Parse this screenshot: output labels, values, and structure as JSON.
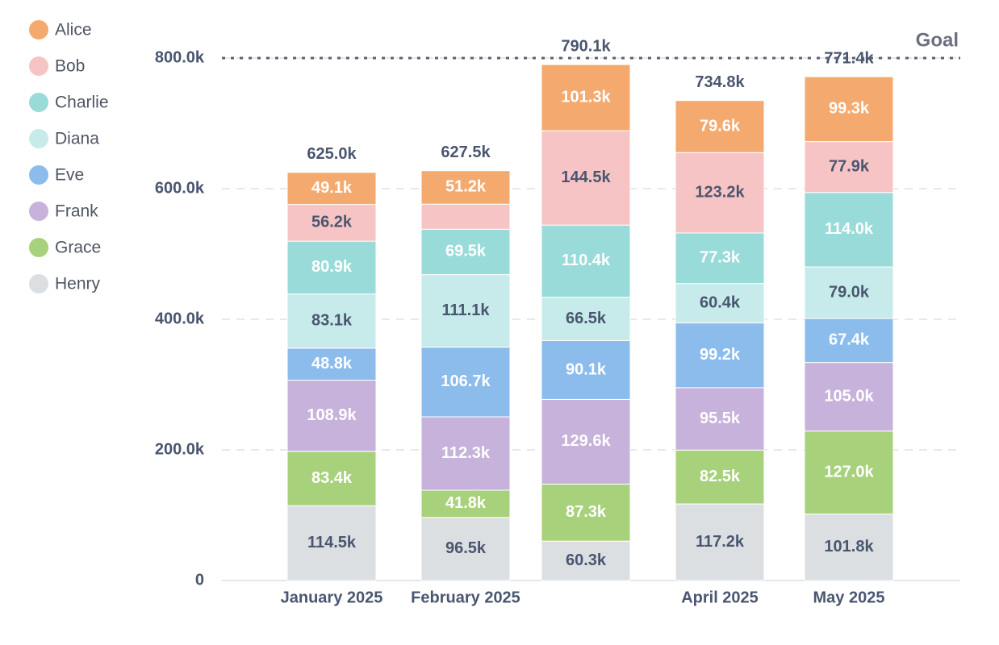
{
  "chart_data": {
    "type": "stacked-bar",
    "categories": [
      "January 2025",
      "February 2025",
      null,
      "April 2025",
      "May 2025"
    ],
    "series": [
      {
        "name": "Henry",
        "color": "#dcdfe2",
        "values": [
          114500,
          96500,
          60300,
          117200,
          101800
        ],
        "value_labels": [
          "114.5k",
          "96.5k",
          "60.3k",
          "117.2k",
          "101.8k"
        ]
      },
      {
        "name": "Grace",
        "color": "#a8d17c",
        "values": [
          83400,
          41800,
          87300,
          82500,
          127000
        ],
        "value_labels": [
          "83.4k",
          "41.8k",
          "87.3k",
          "82.5k",
          "127.0k"
        ]
      },
      {
        "name": "Frank",
        "color": "#c6b2db",
        "values": [
          108900,
          112300,
          129600,
          95500,
          105000
        ],
        "value_labels": [
          "108.9k",
          "112.3k",
          "129.6k",
          "95.5k",
          "105.0k"
        ]
      },
      {
        "name": "Eve",
        "color": "#8bbcec",
        "values": [
          48800,
          106700,
          90100,
          99200,
          67400
        ],
        "value_labels": [
          "48.8k",
          "106.7k",
          "90.1k",
          "99.2k",
          "67.4k"
        ]
      },
      {
        "name": "Diana",
        "color": "#c7ebea",
        "values": [
          83100,
          111100,
          66500,
          60400,
          79000
        ],
        "value_labels": [
          "83.1k",
          "111.1k",
          "66.5k",
          "60.4k",
          "79.0k"
        ]
      },
      {
        "name": "Charlie",
        "color": "#99dbd9",
        "values": [
          80900,
          69500,
          110400,
          77300,
          114000
        ],
        "value_labels": [
          "80.9k",
          "69.5k",
          "110.4k",
          "77.3k",
          "114.0k"
        ]
      },
      {
        "name": "Bob",
        "color": "#f6c4c4",
        "values": [
          56200,
          38400,
          144500,
          123200,
          77900
        ],
        "value_labels": [
          "56.2k",
          null,
          "144.5k",
          "123.2k",
          "77.9k"
        ]
      },
      {
        "name": "Alice",
        "color": "#f4a96f",
        "values": [
          49100,
          51200,
          101300,
          79600,
          99300
        ],
        "value_labels": [
          "49.1k",
          "51.2k",
          "101.3k",
          "79.6k",
          "99.3k"
        ]
      }
    ],
    "total_labels": [
      "625.0k",
      "627.5k",
      "790.1k",
      "734.8k",
      "771.4k"
    ],
    "goal": {
      "label": "Goal",
      "value": 800000
    },
    "ylim": [
      0,
      800000
    ],
    "yticks": [
      0,
      {
        "value": 200000,
        "label": "200.0k"
      },
      {
        "value": 400000,
        "label": "400.0k"
      },
      {
        "value": 600000,
        "label": "600.0k"
      },
      {
        "value": 800000,
        "label": "800.0k"
      }
    ],
    "grid": true,
    "legend": "left"
  }
}
